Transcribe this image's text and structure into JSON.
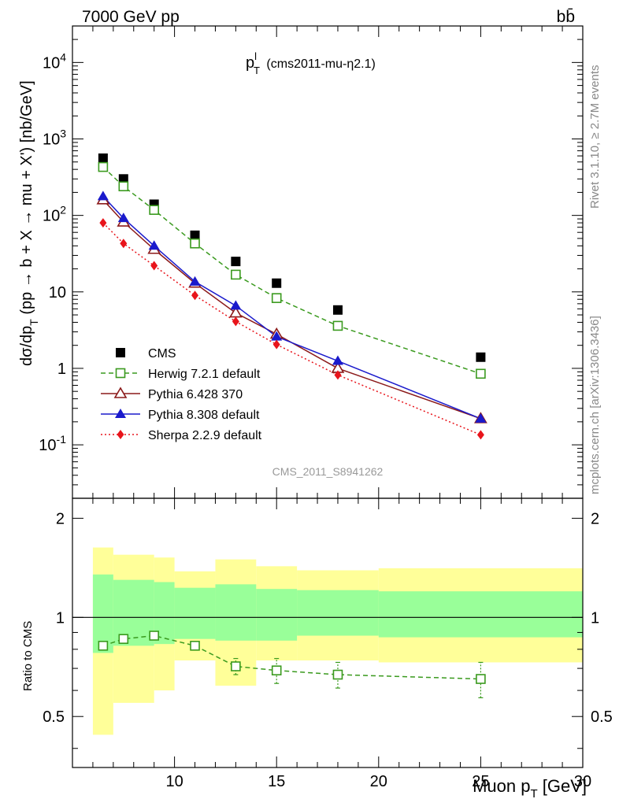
{
  "header": {
    "left": "7000 GeV pp",
    "right": "bb̄"
  },
  "side_text": {
    "rivet": "Rivet 3.1.10, ≥ 2.7M events",
    "mcplots": "mcplots.cern.ch [arXiv:1306.3436]"
  },
  "watermark": "CMS_2011_S8941262",
  "chart_data": [
    {
      "type": "scatter",
      "title": "p_T^l (cms2011-mu-η2.1)",
      "ylabel": "dσ/dp_T (pp → b + X → mu + X') [nb/GeV]",
      "xlim": [
        5,
        30
      ],
      "ylim": [
        0.02,
        30000
      ],
      "yscale": "log",
      "y_tick_labels": [
        "10^-1",
        "1",
        "10",
        "10^2",
        "10^3",
        "10^4"
      ],
      "legend_placement": "lower-left",
      "x": [
        6.5,
        7.5,
        9,
        11,
        13,
        15,
        18,
        25
      ],
      "series": [
        {
          "name": "CMS",
          "color": "#000000",
          "marker": "square-filled",
          "y": [
            560,
            300,
            140,
            55,
            25,
            13,
            5.8,
            1.4
          ]
        },
        {
          "name": "Herwig 7.2.1 default",
          "color": "#3a9a1e",
          "marker": "square-open",
          "line": "dashed",
          "y": [
            430,
            240,
            118,
            43,
            16.8,
            8.3,
            3.6,
            0.85
          ]
        },
        {
          "name": "Pythia 6.428 370",
          "color": "#8b1a1a",
          "marker": "triangle-open",
          "line": "solid",
          "y": [
            160,
            82,
            36,
            13,
            5.3,
            2.8,
            1.0,
            0.22
          ]
        },
        {
          "name": "Pythia 8.308 default",
          "color": "#1a1acc",
          "marker": "triangle-filled",
          "line": "solid",
          "y": [
            178,
            92,
            40,
            13.6,
            6.6,
            2.6,
            1.25,
            0.22
          ]
        },
        {
          "name": "Sherpa 2.2.9 default",
          "color": "#e8141b",
          "marker": "diamond-filled",
          "line": "dotted",
          "y": [
            80,
            43,
            22,
            9.0,
            4.1,
            2.05,
            0.82,
            0.135
          ]
        }
      ]
    },
    {
      "type": "line",
      "ylabel": "Ratio to CMS",
      "xlabel": "Muon p_T [GeV]",
      "xlim": [
        5,
        30
      ],
      "ylim": [
        0.35,
        2.3
      ],
      "x_ticks": [
        10,
        15,
        20,
        25,
        30
      ],
      "y_ticks": [
        0.5,
        1,
        2
      ],
      "reference_line": 1,
      "bands": {
        "edges": [
          6,
          7,
          9,
          10,
          12,
          14,
          16,
          20,
          30
        ],
        "inner_low": [
          0.78,
          0.82,
          0.83,
          0.86,
          0.85,
          0.85,
          0.88,
          0.87
        ],
        "inner_high": [
          1.35,
          1.3,
          1.28,
          1.23,
          1.26,
          1.22,
          1.21,
          1.2
        ],
        "outer_low": [
          0.44,
          0.55,
          0.6,
          0.74,
          0.62,
          0.74,
          0.74,
          0.73
        ],
        "outer_high": [
          1.63,
          1.55,
          1.52,
          1.38,
          1.5,
          1.43,
          1.39,
          1.41
        ]
      },
      "series": [
        {
          "name": "Herwig 7.2.1 default",
          "color": "#3a9a1e",
          "x": [
            6.5,
            7.5,
            9,
            11,
            13,
            15,
            18,
            25
          ],
          "y": [
            0.82,
            0.86,
            0.88,
            0.82,
            0.71,
            0.69,
            0.67,
            0.65
          ],
          "err": [
            0.02,
            0.02,
            0.02,
            0.02,
            0.04,
            0.06,
            0.06,
            0.08
          ]
        }
      ]
    }
  ]
}
